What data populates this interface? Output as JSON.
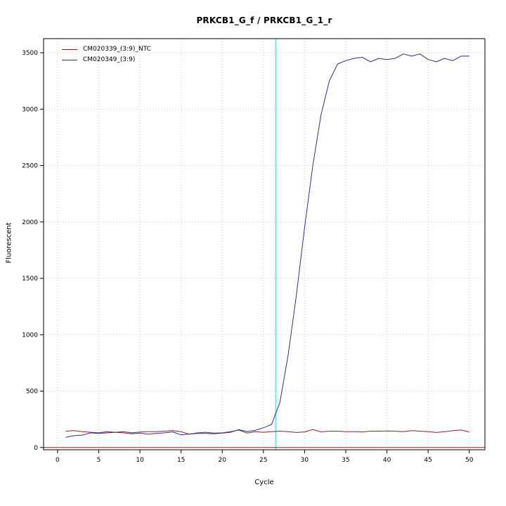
{
  "chart_data": {
    "type": "line",
    "title": "PRKCB1_G_f / PRKCB1_G_1_r",
    "xlabel": "Cycle",
    "ylabel": "Fluorescent",
    "xlim": [
      -1.7,
      51.9
    ],
    "ylim": [
      -20,
      3625
    ],
    "xticks": [
      0,
      5,
      10,
      15,
      20,
      25,
      30,
      35,
      40,
      45,
      50
    ],
    "yticks": [
      0,
      500,
      1000,
      1500,
      2000,
      2500,
      3000,
      3500
    ],
    "grid": true,
    "grid_color": "#c8c8c8",
    "legend_position": "top-left",
    "threshold_line": {
      "x": 26.5,
      "color": "#6feaea"
    },
    "baseline": {
      "y": 0,
      "color": "#8b2323"
    },
    "x": [
      1,
      2,
      3,
      4,
      5,
      6,
      7,
      8,
      9,
      10,
      11,
      12,
      13,
      14,
      15,
      16,
      17,
      18,
      19,
      20,
      21,
      22,
      23,
      24,
      25,
      26,
      27,
      28,
      29,
      30,
      31,
      32,
      33,
      34,
      35,
      36,
      37,
      38,
      39,
      40,
      41,
      42,
      43,
      44,
      45,
      46,
      47,
      48,
      49,
      50
    ],
    "series": [
      {
        "name": "CM020339_(3:9)_NTC",
        "color": "#8b2323",
        "values": [
          145,
          150,
          140,
          135,
          130,
          140,
          135,
          140,
          130,
          137,
          140,
          140,
          145,
          150,
          140,
          118,
          130,
          135,
          128,
          130,
          140,
          155,
          128,
          140,
          135,
          140,
          145,
          140,
          133,
          138,
          160,
          138,
          145,
          145,
          140,
          140,
          138,
          145,
          145,
          147,
          145,
          140,
          150,
          145,
          140,
          133,
          140,
          150,
          155,
          138
        ]
      },
      {
        "name": "CM020349_(3:9)",
        "color": "#2f2f8f",
        "values": [
          90,
          105,
          110,
          130,
          125,
          130,
          135,
          130,
          122,
          128,
          118,
          125,
          130,
          138,
          112,
          120,
          125,
          125,
          122,
          128,
          135,
          158,
          142,
          152,
          175,
          205,
          400,
          820,
          1350,
          1950,
          2500,
          2950,
          3250,
          3400,
          3430,
          3450,
          3460,
          3420,
          3450,
          3440,
          3450,
          3490,
          3470,
          3490,
          3440,
          3420,
          3450,
          3430,
          3470,
          3470
        ]
      }
    ]
  }
}
